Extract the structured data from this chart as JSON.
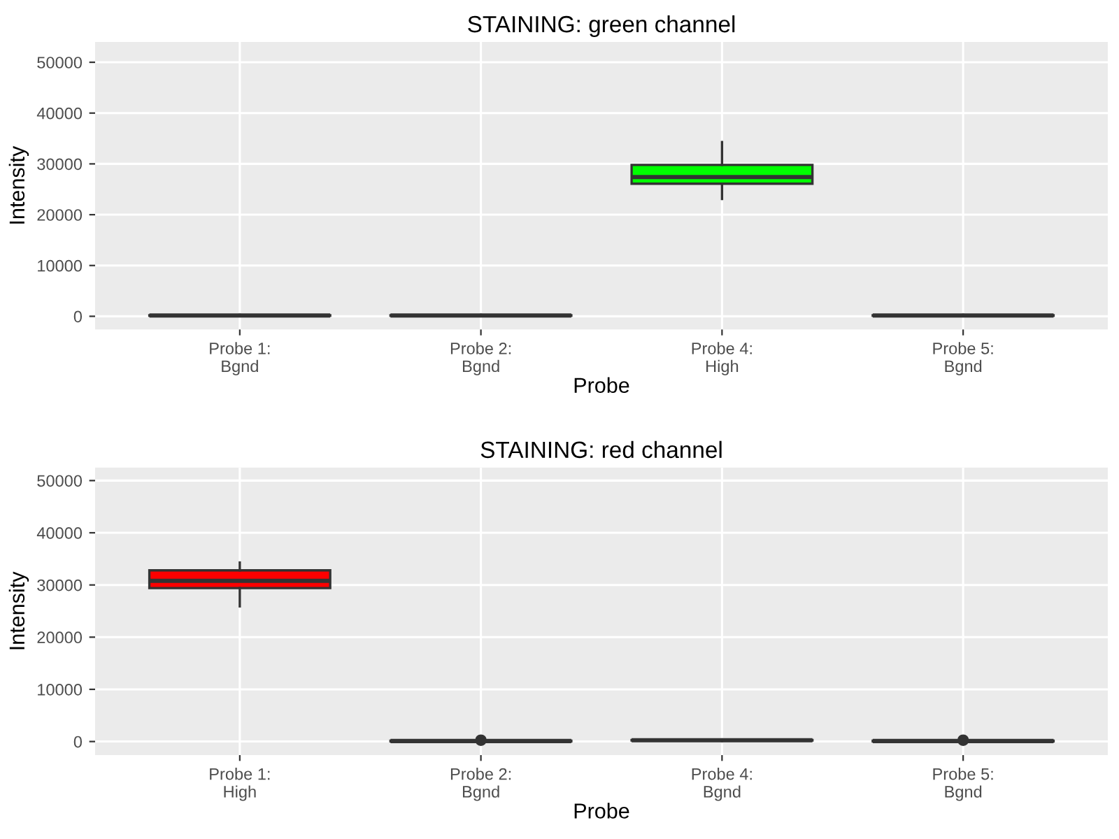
{
  "chart_data": [
    {
      "type": "box",
      "title": "STAINING: green channel",
      "xlabel": "Probe",
      "ylabel": "Intensity",
      "categories": [
        "Probe 1:\nBgnd",
        "Probe 2:\nBgnd",
        "Probe 4:\nHigh",
        "Probe 5:\nBgnd"
      ],
      "boxes": [
        {
          "low": 0,
          "q1": 100,
          "median": 150,
          "q3": 200,
          "high": 300
        },
        {
          "low": 0,
          "q1": 100,
          "median": 150,
          "q3": 200,
          "high": 300
        },
        {
          "low": 23100,
          "q1": 26100,
          "median": 27400,
          "q3": 29800,
          "high": 34300
        },
        {
          "low": 0,
          "q1": 100,
          "median": 150,
          "q3": 200,
          "high": 300
        }
      ],
      "colors": [
        "#ffffff",
        "#ffffff",
        "#00ff00",
        "#ffffff"
      ],
      "ylim": [
        -2600,
        54000
      ],
      "yticks": [
        0,
        10000,
        20000,
        30000,
        40000,
        50000
      ],
      "grid": true
    },
    {
      "type": "box",
      "title": "STAINING: red channel",
      "xlabel": "Probe",
      "ylabel": "Intensity",
      "categories": [
        "Probe 1:\nHigh",
        "Probe 2:\nBgnd",
        "Probe 4:\nBgnd",
        "Probe 5:\nBgnd"
      ],
      "boxes": [
        {
          "low": 25900,
          "q1": 29400,
          "median": 30800,
          "q3": 32800,
          "high": 34300
        },
        {
          "low": 0,
          "q1": 50,
          "median": 100,
          "q3": 150,
          "high": 200,
          "outliers": [
            250
          ]
        },
        {
          "low": 100,
          "q1": 200,
          "median": 250,
          "q3": 300,
          "high": 400
        },
        {
          "low": 0,
          "q1": 50,
          "median": 100,
          "q3": 150,
          "high": 200,
          "outliers": [
            250
          ]
        }
      ],
      "colors": [
        "#ff0000",
        "#ffffff",
        "#ffffff",
        "#ffffff"
      ],
      "ylim": [
        -2600,
        52500
      ],
      "yticks": [
        0,
        10000,
        20000,
        30000,
        40000,
        50000
      ],
      "grid": true
    }
  ]
}
